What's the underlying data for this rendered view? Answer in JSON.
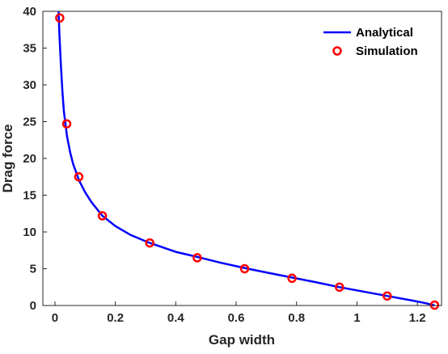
{
  "chart_data": {
    "type": "line",
    "xlabel": "Gap width",
    "ylabel": "Drag force",
    "xlim": [
      -0.04,
      1.28
    ],
    "ylim": [
      0,
      40
    ],
    "xticks": [
      0,
      0.2,
      0.4,
      0.6,
      0.8,
      1,
      1.2
    ],
    "xtick_labels": [
      "0",
      "0.2",
      "0.4",
      "0.6",
      "0.8",
      "1",
      "1.2"
    ],
    "yticks": [
      0,
      5,
      10,
      15,
      20,
      25,
      30,
      35,
      40
    ],
    "ytick_labels": [
      "0",
      "5",
      "10",
      "15",
      "20",
      "25",
      "30",
      "35",
      "40"
    ],
    "grid": false,
    "legend_position": "top-right",
    "series": [
      {
        "name": "Analytical",
        "style": "line",
        "color": "#0000ff",
        "x": [
          0.012,
          0.015,
          0.02,
          0.025,
          0.03,
          0.04,
          0.05,
          0.06,
          0.08,
          0.1,
          0.12,
          0.157,
          0.2,
          0.25,
          0.314,
          0.4,
          0.471,
          0.55,
          0.628,
          0.7,
          0.785,
          0.86,
          0.942,
          1.02,
          1.1,
          1.18,
          1.23,
          1.257
        ],
        "y": [
          40,
          36.8,
          32.5,
          28.9,
          26.3,
          23.0,
          20.9,
          19.3,
          17.0,
          15.4,
          14.1,
          12.2,
          10.8,
          9.6,
          8.5,
          7.3,
          6.6,
          5.8,
          5.1,
          4.5,
          3.8,
          3.2,
          2.5,
          1.9,
          1.3,
          0.7,
          0.3,
          0.0
        ]
      },
      {
        "name": "Simulation",
        "style": "markers",
        "color": "#ff0000",
        "x": [
          0.016,
          0.039,
          0.079,
          0.157,
          0.314,
          0.471,
          0.628,
          0.785,
          0.942,
          1.1,
          1.257
        ],
        "y": [
          39.1,
          24.7,
          17.5,
          12.2,
          8.5,
          6.5,
          5.0,
          3.7,
          2.5,
          1.3,
          0.05
        ]
      }
    ]
  }
}
